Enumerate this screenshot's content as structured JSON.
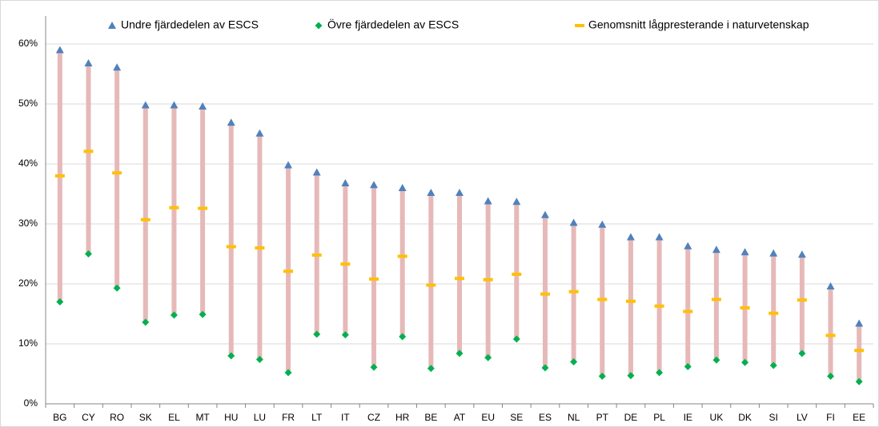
{
  "chart_data": {
    "type": "range",
    "categories": [
      "BG",
      "CY",
      "RO",
      "SK",
      "EL",
      "MT",
      "HU",
      "LU",
      "FR",
      "LT",
      "IT",
      "CZ",
      "HR",
      "BE",
      "AT",
      "EU",
      "SE",
      "ES",
      "NL",
      "PT",
      "DE",
      "PL",
      "IE",
      "UK",
      "DK",
      "SI",
      "LV",
      "FI",
      "EE"
    ],
    "series": [
      {
        "name": "Undre fjärdedelen av ESCS",
        "color": "#4f81bd",
        "marker": "triangle",
        "values": [
          59.0,
          56.8,
          56.1,
          49.8,
          49.8,
          49.6,
          46.9,
          45.1,
          39.8,
          38.6,
          36.8,
          36.5,
          36.0,
          35.2,
          35.2,
          33.8,
          33.7,
          31.5,
          30.2,
          29.9,
          27.8,
          27.8,
          26.3,
          25.7,
          25.3,
          25.1,
          24.9,
          19.6,
          13.4
        ]
      },
      {
        "name": "Övre fjärdedelen av ESCS",
        "color": "#00b050",
        "marker": "diamond",
        "values": [
          17.0,
          25.0,
          19.3,
          13.6,
          14.8,
          14.9,
          8.0,
          7.4,
          5.2,
          11.6,
          11.5,
          6.1,
          11.2,
          5.9,
          8.4,
          7.7,
          10.8,
          6.0,
          7.0,
          4.6,
          4.7,
          5.2,
          6.2,
          7.3,
          6.9,
          6.4,
          8.4,
          4.6,
          3.7
        ]
      },
      {
        "name": "Genomsnitt lågpresterande i naturvetenskap",
        "color": "#ffc000",
        "marker": "dash",
        "values": [
          38.0,
          42.1,
          38.5,
          30.7,
          32.7,
          32.6,
          26.2,
          26.0,
          22.1,
          24.8,
          23.3,
          20.8,
          24.6,
          19.8,
          20.9,
          20.7,
          21.6,
          18.3,
          18.7,
          17.4,
          17.1,
          16.3,
          15.4,
          17.4,
          16.0,
          15.1,
          17.3,
          11.4,
          8.9
        ]
      }
    ],
    "range_color": "#e6b9b8",
    "ylim": [
      0,
      60
    ],
    "yticks": [
      {
        "value": 0,
        "label": "0%"
      },
      {
        "value": 10,
        "label": "10%"
      },
      {
        "value": 20,
        "label": "20%"
      },
      {
        "value": 30,
        "label": "30%"
      },
      {
        "value": 40,
        "label": "40%"
      },
      {
        "value": 50,
        "label": "50%"
      },
      {
        "value": 60,
        "label": "60%"
      }
    ],
    "grid": true
  }
}
